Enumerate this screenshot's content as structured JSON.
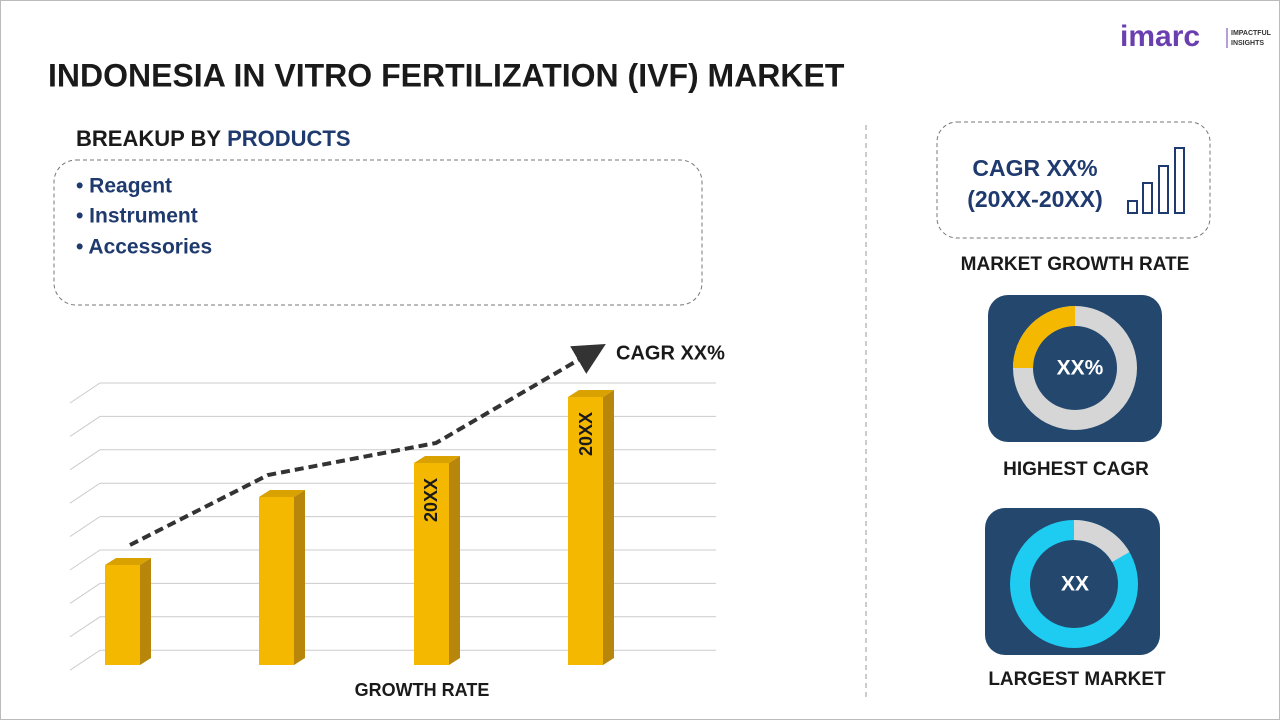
{
  "header": {
    "title": "INDONESIA IN VITRO FERTILIZATION (IVF) MARKET",
    "logo": "imarc",
    "logo_tagline_1": "IMPACTFUL",
    "logo_tagline_2": "INSIGHTS"
  },
  "breakup": {
    "title_prefix": "BREAKUP BY",
    "title_highlight": "PRODUCTS",
    "items": [
      "• Reagent",
      "• Instrument",
      "• Accessories"
    ]
  },
  "chart": {
    "cagr_label": "CAGR XX%",
    "bar_labels": [
      "20XX",
      "20XX"
    ],
    "axis_label": "GROWTH RATE"
  },
  "side": {
    "cagr_line_1": "CAGR XX%",
    "cagr_line_2": "(20XX-20XX)",
    "growth_caption": "MARKET GROWTH RATE",
    "highest_value": "XX%",
    "highest_caption": "HIGHEST CAGR",
    "largest_value": "XX",
    "largest_caption": "LARGEST MARKET"
  }
}
